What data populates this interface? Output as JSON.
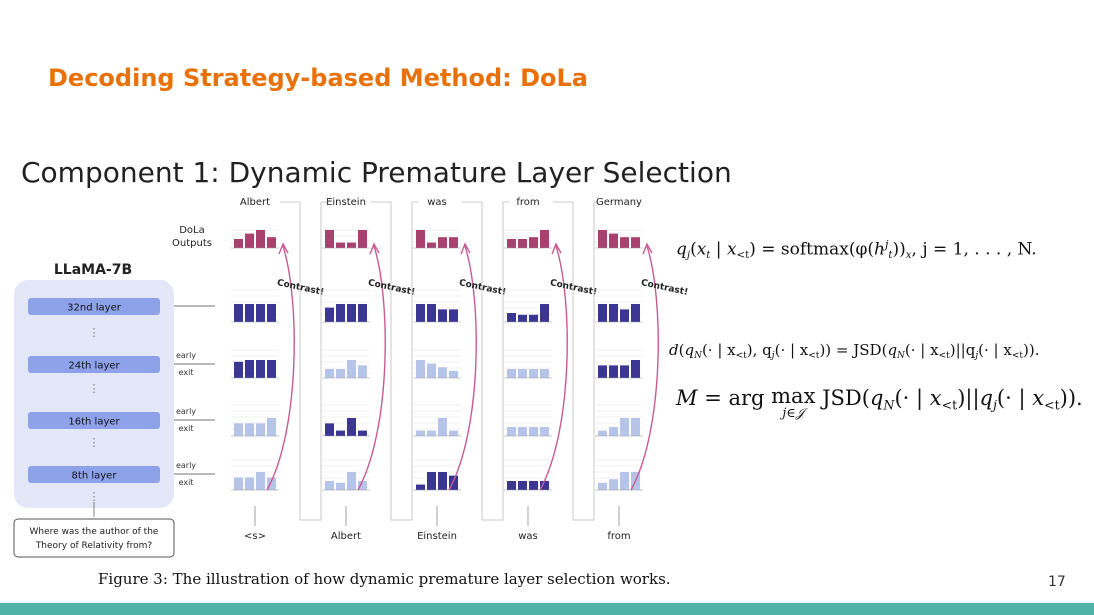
{
  "slide": {
    "title": "Decoding Strategy-based Method: DoLa",
    "subtitle": "Component 1: Dynamic Premature Layer Selection",
    "page_number": "17",
    "caption": "Figure 3: The illustration of how dynamic premature layer selection works."
  },
  "diagram": {
    "model_label": "LLaMA-7B",
    "outputs_label_line1": "DoLa",
    "outputs_label_line2": "Outputs",
    "layers": [
      "32nd layer",
      "24th layer",
      "16th layer",
      "8th layer"
    ],
    "early_exit_line1": "early",
    "early_exit_line2": "exit",
    "vdots": "⋮",
    "question_line1": "Where was the author of the",
    "question_line2": "Theory of Relativity from?",
    "output_tokens": [
      "Albert",
      "Einstein",
      "was",
      "from",
      "Germany"
    ],
    "input_tokens": [
      "<s>",
      "Albert",
      "Einstein",
      "was",
      "from"
    ],
    "contrast_label": "Contrast!"
  },
  "equations": {
    "eq1": {
      "q": "q",
      "j": "j",
      "xt": "x",
      "t": "t",
      "xlt": "x",
      "lt": "<t",
      "eqsign": " = softmax",
      "phi": "φ",
      "h": "h",
      "sup_j": "j",
      "sub_t": "t",
      "tail": ",    j = 1, . . . , N."
    },
    "eq2": {
      "d": "d",
      "qN": "q",
      "N": "N",
      "mid1": "(· | x",
      "lt": "<t",
      "comma": "), q",
      "j": "j",
      "jsd": " = JSD",
      "sep": "||q"
    },
    "eq3": {
      "M": "M",
      "eq": " = arg ",
      "max": "max",
      "under": "j∈𝒥",
      "jsd": " JSD"
    }
  },
  "colors": {
    "title": "#e8710a",
    "teal_bar": "#4fb3a9",
    "layer_box": "#8ea2ea",
    "panel": "#e3e7f7",
    "bar_dark": "#3b3694",
    "bar_light": "#b6c4ea",
    "output_bar": "#a8416e",
    "arrow_pink": "#c85a93"
  }
}
